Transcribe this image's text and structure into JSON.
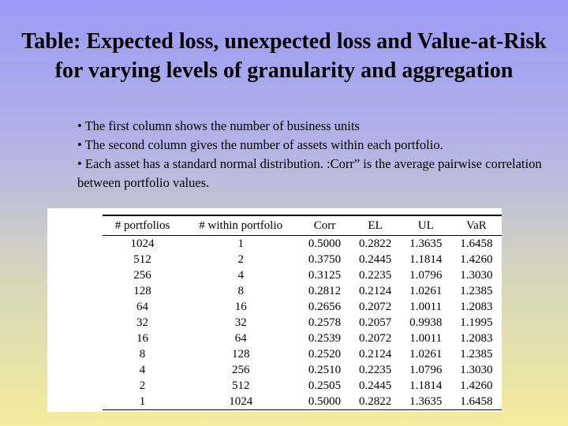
{
  "slide": {
    "title": "Table: Expected loss, unexpected loss and Value-at-Risk for varying levels of granularity and aggregation",
    "bullets": [
      "• The first column shows the number of business units",
      "• The second column gives the number of assets within each portfolio.",
      "• Each asset has a standard normal distribution. :Corr” is the average pairwise correlation between portfolio values."
    ]
  },
  "table": {
    "headers": [
      "# portfolios",
      "# within portfolio",
      "Corr",
      "EL",
      "UL",
      "VaR"
    ],
    "rows": [
      [
        "1024",
        "1",
        "0.5000",
        "0.2822",
        "1.3635",
        "1.6458"
      ],
      [
        "512",
        "2",
        "0.3750",
        "0.2445",
        "1.1814",
        "1.4260"
      ],
      [
        "256",
        "4",
        "0.3125",
        "0.2235",
        "1.0796",
        "1.3030"
      ],
      [
        "128",
        "8",
        "0.2812",
        "0.2124",
        "1.0261",
        "1.2385"
      ],
      [
        "64",
        "16",
        "0.2656",
        "0.2072",
        "1.0011",
        "1.2083"
      ],
      [
        "32",
        "32",
        "0.2578",
        "0.2057",
        "0.9938",
        "1.1995"
      ],
      [
        "16",
        "64",
        "0.2539",
        "0.2072",
        "1.0011",
        "1.2083"
      ],
      [
        "8",
        "128",
        "0.2520",
        "0.2124",
        "1.0261",
        "1.2385"
      ],
      [
        "4",
        "256",
        "0.2510",
        "0.2235",
        "1.0796",
        "1.3030"
      ],
      [
        "2",
        "512",
        "0.2505",
        "0.2445",
        "1.1814",
        "1.4260"
      ],
      [
        "1",
        "1024",
        "0.5000",
        "0.2822",
        "1.3635",
        "1.6458"
      ]
    ]
  }
}
